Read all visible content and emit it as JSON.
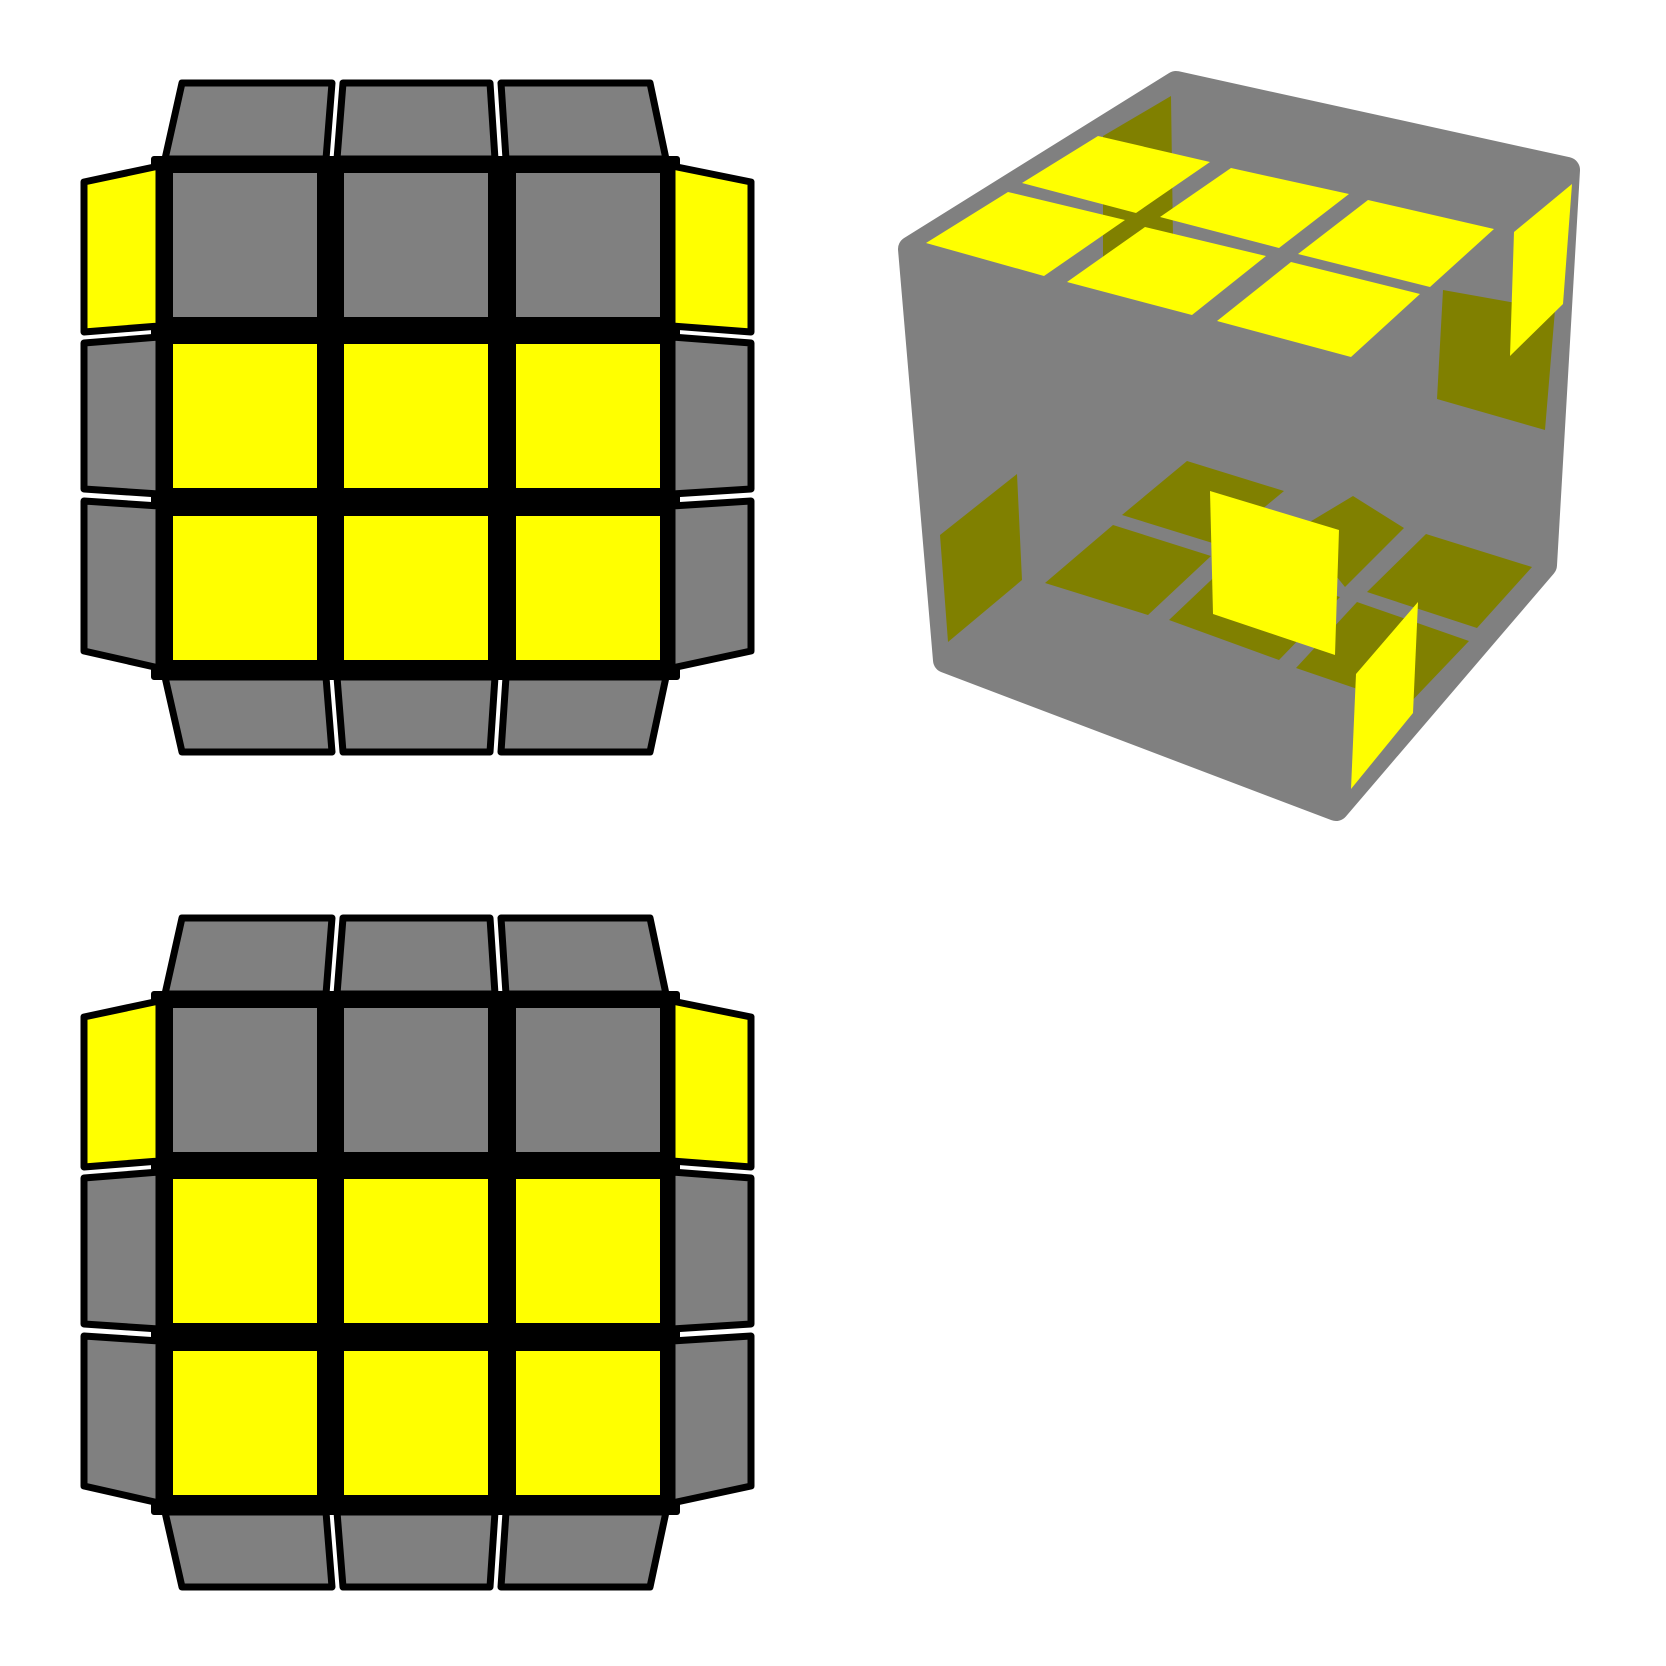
{
  "colors": {
    "yellow": "#ffff00",
    "gray": "#808080",
    "dark_yellow": "#808000",
    "outline": "#000000",
    "background": "#ffffff"
  },
  "diagrams": {
    "top_view_1": {
      "center": [
        [
          "gray",
          "gray",
          "gray"
        ],
        [
          "yellow",
          "yellow",
          "yellow"
        ],
        [
          "yellow",
          "yellow",
          "yellow"
        ]
      ],
      "top": [
        "gray",
        "gray",
        "gray"
      ],
      "bottom": [
        "gray",
        "gray",
        "gray"
      ],
      "left": [
        "yellow",
        "gray",
        "gray"
      ],
      "right": [
        "yellow",
        "gray",
        "gray"
      ]
    },
    "top_view_2": {
      "center": [
        [
          "gray",
          "gray",
          "gray"
        ],
        [
          "yellow",
          "yellow",
          "yellow"
        ],
        [
          "yellow",
          "yellow",
          "yellow"
        ]
      ],
      "top": [
        "gray",
        "gray",
        "gray"
      ],
      "bottom": [
        "gray",
        "gray",
        "gray"
      ],
      "left": [
        "yellow",
        "gray",
        "gray"
      ],
      "right": [
        "yellow",
        "gray",
        "gray"
      ]
    },
    "iso_cube": {
      "top_face": [
        "yellow",
        "yellow",
        "yellow",
        "yellow",
        "yellow",
        "yellow"
      ],
      "hidden_face": "dark_yellow",
      "side_stickers": [
        "yellow",
        "yellow",
        "yellow"
      ]
    }
  }
}
